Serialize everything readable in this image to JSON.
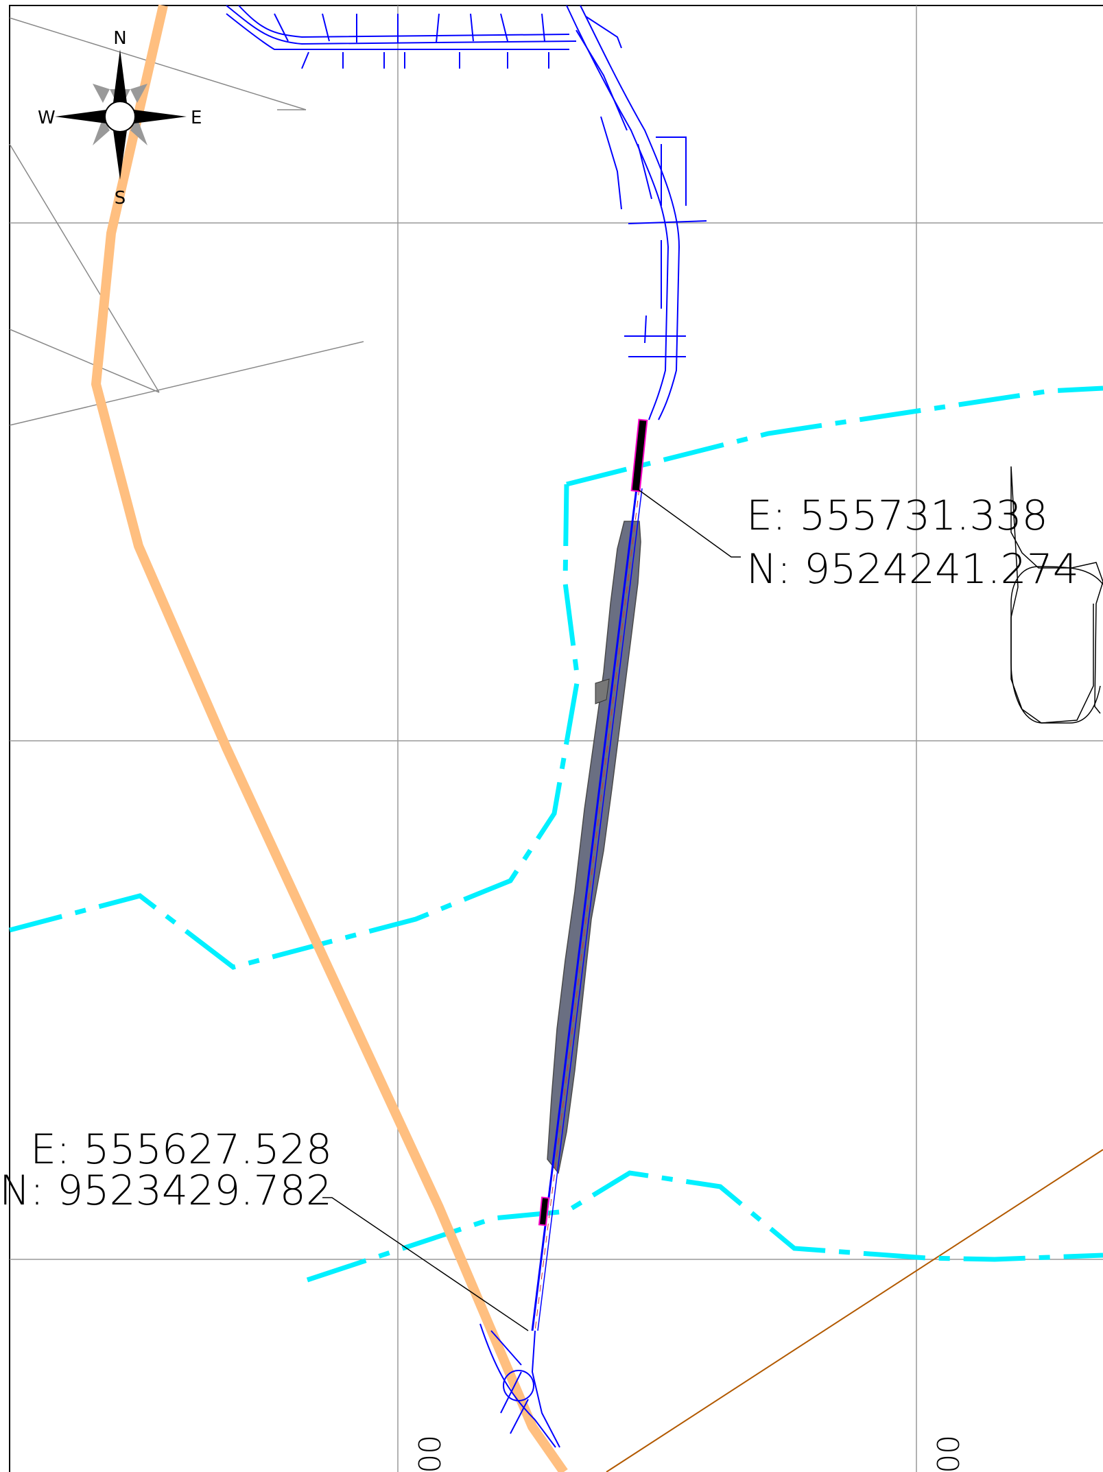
{
  "compass": {
    "north": "N",
    "south": "S",
    "east": "E",
    "west": "W"
  },
  "annotations": {
    "north_point": {
      "easting": "E:  555731.338",
      "northing": "N:  9524241.274"
    },
    "south_point": {
      "easting": "E:  555627.528",
      "northing": "N:  9523429.782"
    }
  },
  "grid_labels": {
    "bottom_left": "00",
    "bottom_right": "00"
  },
  "colors": {
    "road_outline": "#0000ff",
    "project_road": "#666a80",
    "boundary": "#00f0ff",
    "highway": "#ffbf80",
    "grid": "#999999",
    "reference_line": "#b25900",
    "markers": "#ff00c8"
  }
}
